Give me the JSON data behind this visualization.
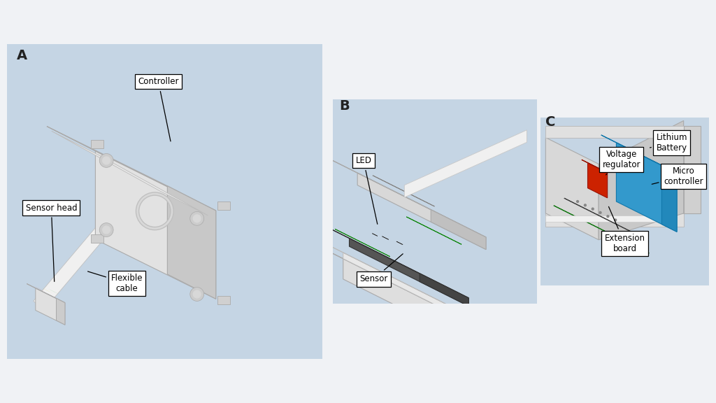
{
  "fig_width": 10.24,
  "fig_height": 5.76,
  "dpi": 100,
  "bg_outer": "#f0f2f5",
  "bg_panel": "#c5d5e4",
  "bg_gradient_top": "#dae4ed",
  "bg_gradient_bot": "#b0c4d4",
  "label_A": "A",
  "label_B": "B",
  "label_C": "C",
  "label_Controller": "Controller",
  "label_SensorHead": "Sensor head",
  "label_FlexibleCable": "Flexible\ncable",
  "label_LED": "LED",
  "label_Sensor": "Sensor",
  "label_LithiumBattery": "Lithium\nBattery",
  "label_VoltageRegulator": "Voltage\nregulator",
  "label_MicroController": "Micro\ncontroller",
  "label_ExtensionBoard": "Extension\nboard",
  "col_box_light": "#e8e8e8",
  "col_box_mid": "#d0d0d0",
  "col_box_dark": "#b8b8b8",
  "col_box_shadow": "#a0a0a0",
  "col_cable": "#f0f0f0",
  "col_cable_edge": "#c8c8c8",
  "col_green": "#2db82d",
  "col_green_dark": "#1a8a1a",
  "col_yellow": "#e8cc00",
  "col_red_led": "#cc2200",
  "col_sensor_dark": "#555555",
  "col_blue": "#3399cc",
  "col_blue_mid": "#2288bb",
  "col_blue_dark": "#1166aa",
  "col_red_comp": "#cc2200",
  "col_green_board": "#2db82d"
}
